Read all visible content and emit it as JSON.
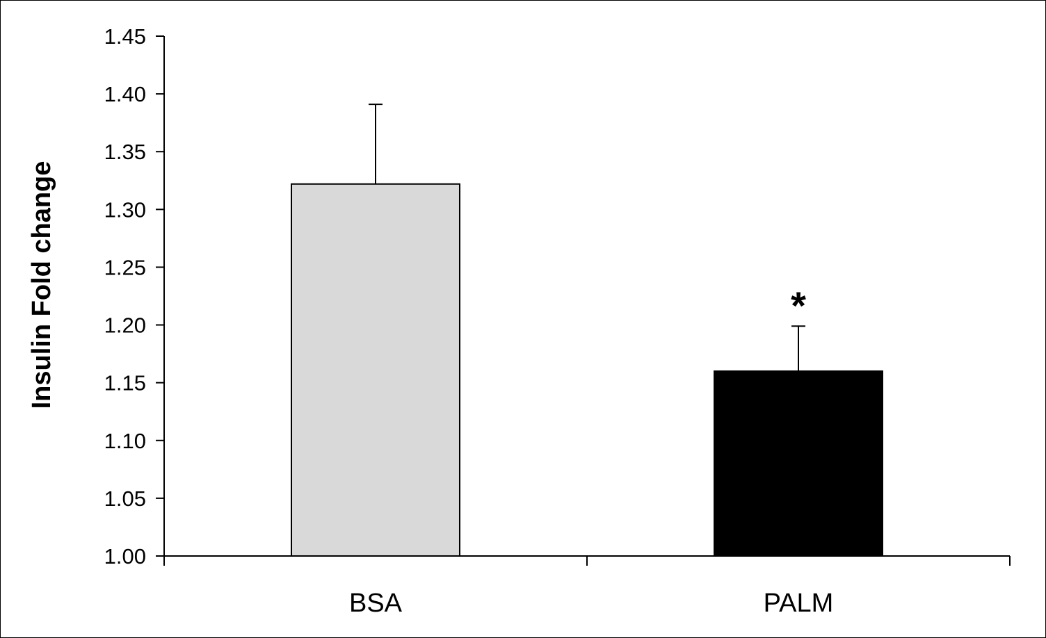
{
  "chart_data": {
    "type": "bar",
    "title": "",
    "xlabel": "",
    "ylabel": "Insulin Fold change",
    "categories": [
      "BSA",
      "PALM"
    ],
    "values": [
      1.322,
      1.16
    ],
    "errors": [
      0.069,
      0.039
    ],
    "colors": [
      "#d9d9d9",
      "#000000"
    ],
    "ylim": [
      1.0,
      1.45
    ],
    "yticks": [
      "1.00",
      "1.05",
      "1.10",
      "1.15",
      "1.20",
      "1.25",
      "1.30",
      "1.35",
      "1.40",
      "1.45"
    ],
    "annotations": [
      {
        "category": "PALM",
        "text": "*"
      }
    ],
    "grid": false,
    "legend": "none"
  }
}
